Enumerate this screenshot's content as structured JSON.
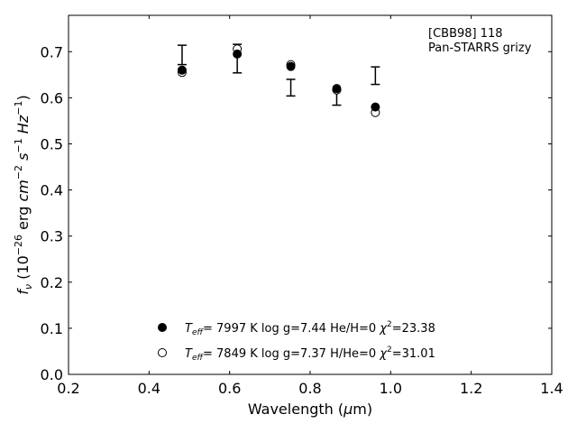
{
  "chart_data": {
    "type": "scatter",
    "xlabel": "Wavelength (μm)",
    "ylabel": "f_ν (10^−26 erg cm^−2 s^−1 Hz^−1)",
    "xlim": [
      0.2,
      1.4
    ],
    "ylim": [
      0.0,
      0.78
    ],
    "xticks": [
      "0.2",
      "0.4",
      "0.6",
      "0.8",
      "1.0",
      "1.2",
      "1.4"
    ],
    "yticks": [
      "0.0",
      "0.1",
      "0.2",
      "0.3",
      "0.4",
      "0.5",
      "0.6",
      "0.7"
    ],
    "annotation": [
      "[CBB98] 118",
      "Pan-STARRS grizy"
    ],
    "grid": false,
    "legend_position": "bottom-center",
    "observed": {
      "x": [
        0.482,
        0.619,
        0.752,
        0.866,
        0.962
      ],
      "y": [
        0.693,
        0.685,
        0.622,
        0.6,
        0.648
      ],
      "yerr": [
        0.021,
        0.031,
        0.018,
        0.016,
        0.019
      ]
    },
    "series": [
      {
        "label": "T_eff=  7997 K  log g=7.44  He/H=0  χ²=23.38",
        "marker": "filled-circle",
        "x": [
          0.482,
          0.619,
          0.752,
          0.866,
          0.962
        ],
        "y": [
          0.66,
          0.695,
          0.668,
          0.62,
          0.58
        ]
      },
      {
        "label": "T_eff=  7849 K  log g=7.37  H/He=0  χ²=31.01",
        "marker": "open-circle",
        "x": [
          0.482,
          0.619,
          0.752,
          0.866,
          0.962
        ],
        "y": [
          0.655,
          0.706,
          0.672,
          0.617,
          0.568
        ]
      }
    ]
  }
}
